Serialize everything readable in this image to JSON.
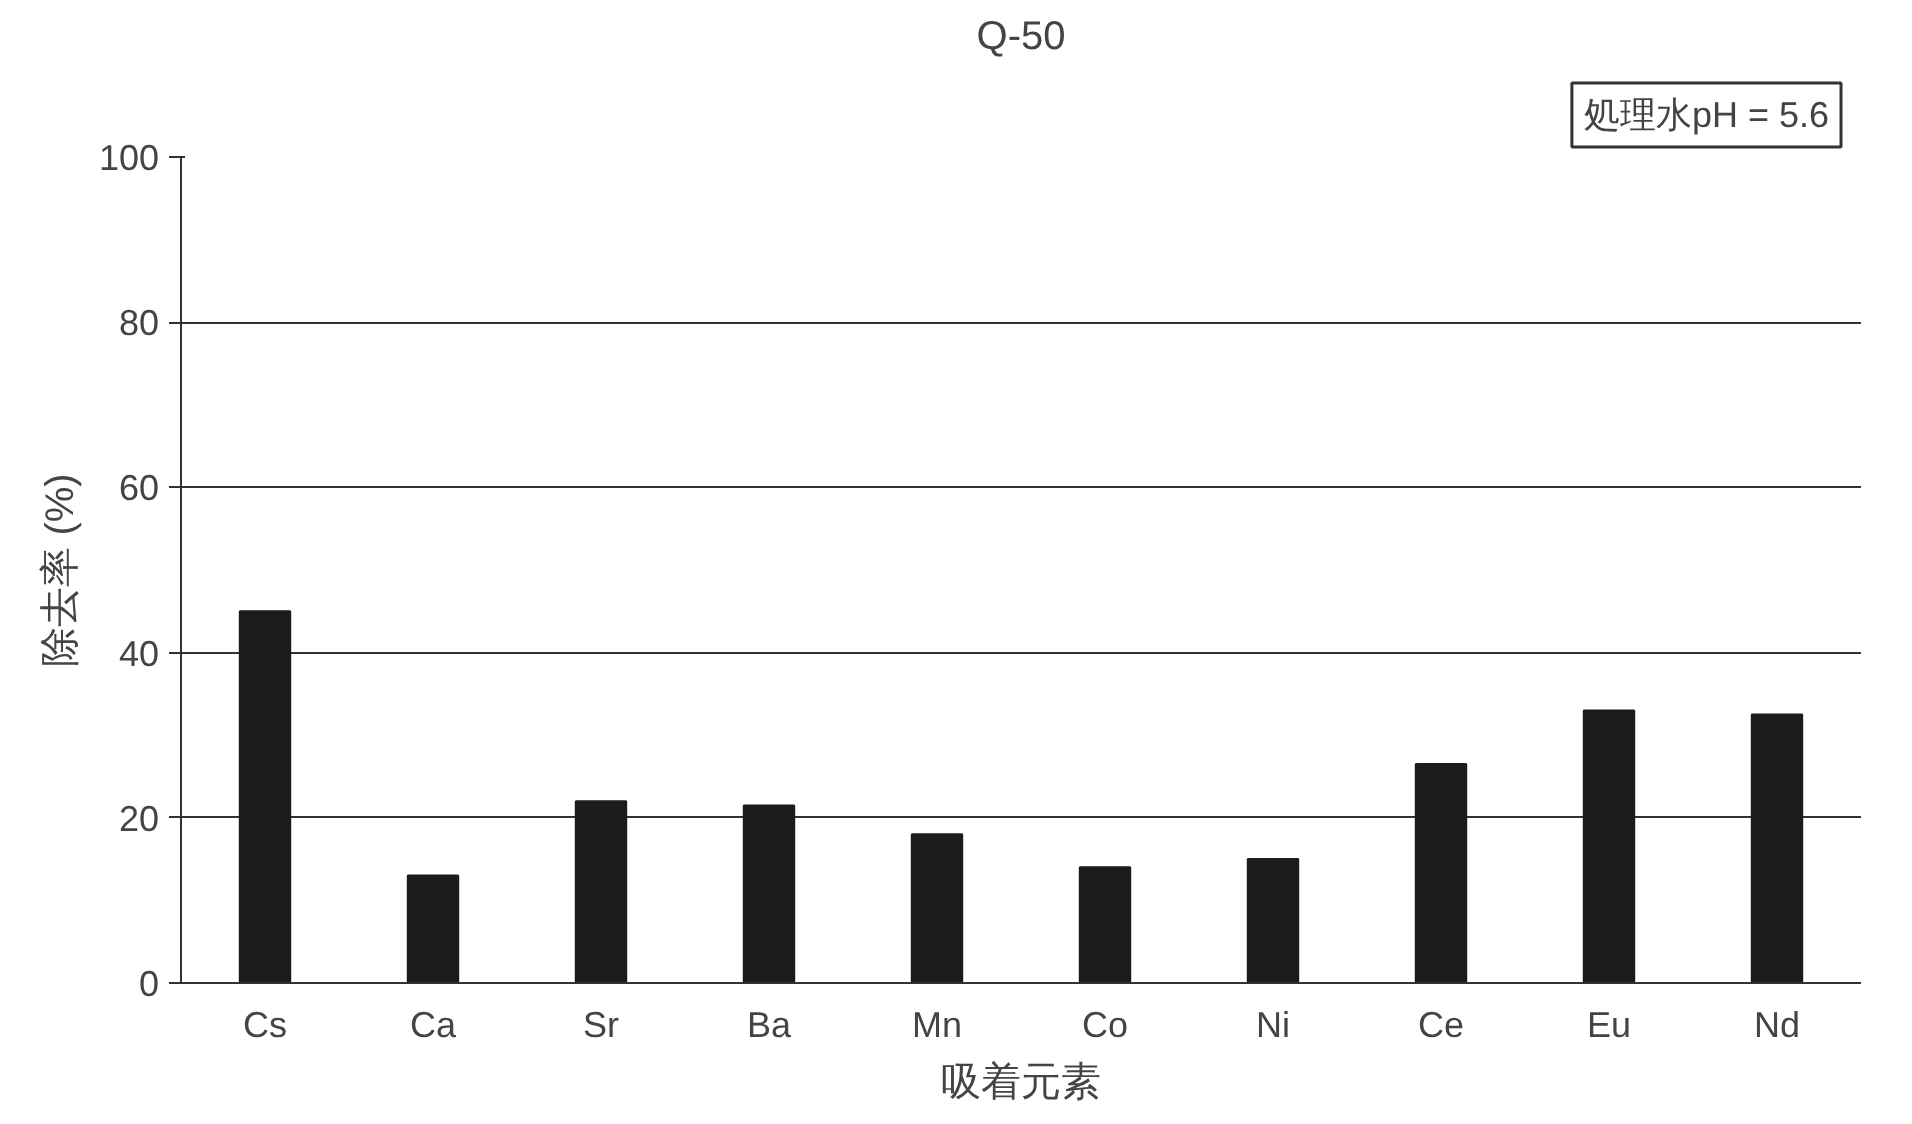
{
  "chart_data": {
    "type": "bar",
    "title": "Q-50",
    "xlabel": "吸着元素",
    "ylabel": "除去率 (%)",
    "categories": [
      "Cs",
      "Ca",
      "Sr",
      "Ba",
      "Mn",
      "Co",
      "Ni",
      "Ce",
      "Eu",
      "Nd"
    ],
    "values": [
      45,
      13,
      22,
      21.5,
      18,
      14,
      15,
      26.5,
      33,
      32.5
    ],
    "color": "#1c1c1c",
    "ylim": [
      0,
      100
    ],
    "yticks": [
      0,
      20,
      40,
      60,
      80,
      100
    ],
    "grid": "y",
    "annotations": [
      "処理水pH = 5.6"
    ]
  }
}
